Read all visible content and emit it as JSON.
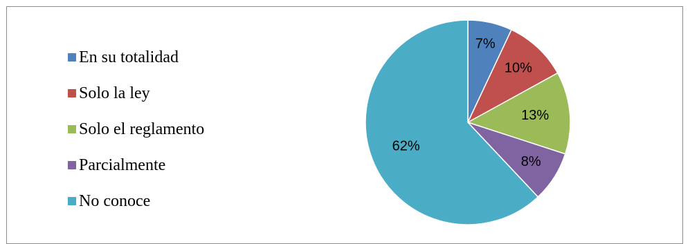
{
  "chart_data": {
    "type": "pie",
    "categories": [
      "En su totalidad",
      "Solo la ley",
      "Solo el reglamento",
      "Parcialmente",
      "No conoce"
    ],
    "values": [
      7,
      10,
      13,
      8,
      62
    ],
    "data_labels": [
      "7%",
      "10%",
      "13%",
      "8%",
      "62%"
    ],
    "colors": [
      "#4f81bd",
      "#c0504d",
      "#9bbb59",
      "#8064a2",
      "#4bacc6"
    ],
    "legend_position": "left",
    "title": ""
  }
}
